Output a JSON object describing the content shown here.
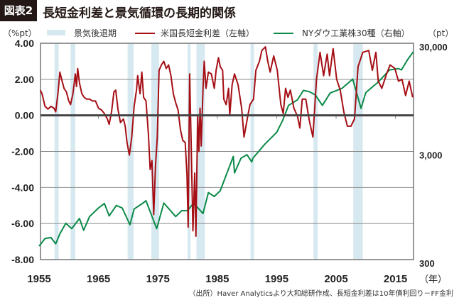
{
  "header": {
    "badge": "図表2",
    "title": "長短金利差と景気循環の長期的関係"
  },
  "legend": {
    "left_unit": "（%pt）",
    "right_unit": "（pt）",
    "recession": "景気後退期",
    "spread": "米国長短金利差（左軸）",
    "dow": "NYダウ工業株30種（右軸）"
  },
  "colors": {
    "recession": "#d7e9f0",
    "spread": "#a50f15",
    "dow": "#0b8a48",
    "zero": "#444444",
    "grid": "#888888"
  },
  "footnote": "（出所）Haver Analyticsより大和総研作成、長短金利差は10年債利回り－FF金利",
  "chart_data": {
    "type": "line",
    "title": "長短金利差と景気循環の長期的関係",
    "xlabel": "（年）",
    "xlim": [
      1955,
      2018
    ],
    "x_ticks": [
      1955,
      1965,
      1975,
      1985,
      1995,
      2005,
      2015
    ],
    "x_tick_labels": [
      "1955",
      "1965",
      "1975",
      "1985",
      "1995",
      "2005",
      "2015"
    ],
    "left_axis": {
      "ylim": [
        -8,
        4
      ],
      "ticks": [
        4,
        2,
        0,
        -2,
        -4,
        -6,
        -8
      ],
      "tick_labels": [
        "4.00",
        "2.00",
        "0.00",
        "-2.00",
        "-4.00",
        "-6.00",
        "-8.00"
      ],
      "unit": "%pt"
    },
    "right_axis": {
      "scale": "log",
      "ylim": [
        300,
        30000
      ],
      "ticks": [
        30000,
        3000,
        300
      ],
      "tick_labels": [
        "30,000",
        "3,000",
        "300"
      ],
      "unit": "pt"
    },
    "recessions": [
      [
        1957.6,
        1958.3
      ],
      [
        1960.3,
        1961.1
      ],
      [
        1969.9,
        1970.9
      ],
      [
        1973.9,
        1975.2
      ],
      [
        1980.0,
        1980.5
      ],
      [
        1981.5,
        1982.9
      ],
      [
        1990.6,
        1991.2
      ],
      [
        2001.2,
        2001.9
      ],
      [
        2007.9,
        2009.5
      ]
    ],
    "series": [
      {
        "name": "米国長短金利差（左軸）",
        "axis": "left",
        "points": [
          [
            1955.2,
            1.4
          ],
          [
            1955.5,
            1.2
          ],
          [
            1956,
            0.5
          ],
          [
            1956.5,
            0.35
          ],
          [
            1957,
            0.5
          ],
          [
            1957.5,
            0.4
          ],
          [
            1957.8,
            0.2
          ],
          [
            1958.2,
            1.3
          ],
          [
            1958.5,
            2.4
          ],
          [
            1958.8,
            2.0
          ],
          [
            1959.2,
            1.5
          ],
          [
            1959.6,
            1.3
          ],
          [
            1960,
            0.8
          ],
          [
            1960.3,
            0.6
          ],
          [
            1960.7,
            1.2
          ],
          [
            1961.1,
            2.3
          ],
          [
            1961.3,
            1.6
          ],
          [
            1961.5,
            2.6
          ],
          [
            1961.8,
            1.8
          ],
          [
            1962.2,
            1.2
          ],
          [
            1962.6,
            1.0
          ],
          [
            1963,
            0.9
          ],
          [
            1963.5,
            0.9
          ],
          [
            1964,
            0.8
          ],
          [
            1964.5,
            0.8
          ],
          [
            1965,
            0.4
          ],
          [
            1965.5,
            0.3
          ],
          [
            1966,
            0.1
          ],
          [
            1966.5,
            -0.2
          ],
          [
            1966.8,
            -0.5
          ],
          [
            1967.2,
            0.2
          ],
          [
            1967.6,
            1.3
          ],
          [
            1967.9,
            1.4
          ],
          [
            1968.3,
            0.3
          ],
          [
            1968.7,
            -0.4
          ],
          [
            1969.2,
            -0.2
          ],
          [
            1969.5,
            -0.6
          ],
          [
            1969.8,
            -1.5
          ],
          [
            1970.2,
            -2.2
          ],
          [
            1970.6,
            -1.2
          ],
          [
            1971,
            0.5
          ],
          [
            1971.4,
            1.4
          ],
          [
            1971.6,
            2.2
          ],
          [
            1972,
            1.2
          ],
          [
            1972.3,
            2.4
          ],
          [
            1972.6,
            1.0
          ],
          [
            1973,
            0.8
          ],
          [
            1973.4,
            -1.0
          ],
          [
            1973.7,
            -3.0
          ],
          [
            1974,
            -2.5
          ],
          [
            1974.3,
            -5.5
          ],
          [
            1974.6,
            -2.8
          ],
          [
            1974.9,
            -1.2
          ],
          [
            1975.2,
            2.5
          ],
          [
            1975.6,
            2.8
          ],
          [
            1976,
            3.0
          ],
          [
            1976.4,
            2.6
          ],
          [
            1976.8,
            2.8
          ],
          [
            1977.2,
            2.2
          ],
          [
            1977.6,
            1.2
          ],
          [
            1978,
            0.7
          ],
          [
            1978.4,
            0.3
          ],
          [
            1978.8,
            -0.8
          ],
          [
            1979.2,
            -1.4
          ],
          [
            1979.6,
            -1.5
          ],
          [
            1979.9,
            -3.3
          ],
          [
            1980.1,
            -6.2
          ],
          [
            1980.35,
            2.3
          ],
          [
            1980.6,
            -1.5
          ],
          [
            1980.9,
            -6.4
          ],
          [
            1981.2,
            -3.2
          ],
          [
            1981.4,
            -6.7
          ],
          [
            1981.7,
            0.0
          ],
          [
            1981.9,
            -2.0
          ],
          [
            1982.1,
            0.4
          ],
          [
            1982.3,
            -1.7
          ],
          [
            1982.6,
            1.5
          ],
          [
            1982.8,
            3.0
          ],
          [
            1983.1,
            1.5
          ],
          [
            1983.5,
            2.4
          ],
          [
            1984,
            2.3
          ],
          [
            1984.5,
            1.5
          ],
          [
            1984.8,
            2.5
          ],
          [
            1985.2,
            3.2
          ],
          [
            1985.5,
            2.7
          ],
          [
            1985.9,
            2.5
          ],
          [
            1986.1,
            0.9
          ],
          [
            1986.5,
            0.6
          ],
          [
            1986.9,
            1.5
          ],
          [
            1987.1,
            0
          ],
          [
            1987.5,
            1.7
          ],
          [
            1987.9,
            2.3
          ],
          [
            1988.5,
            1.7
          ],
          [
            1989.1,
            0.4
          ],
          [
            1989.5,
            -1.2
          ],
          [
            1990.1,
            -0.1
          ],
          [
            1990.5,
            0.6
          ],
          [
            1991.1,
            0.9
          ],
          [
            1991.5,
            2.5
          ],
          [
            1992.1,
            3.0
          ],
          [
            1992.5,
            3.6
          ],
          [
            1993.1,
            3.8
          ],
          [
            1993.5,
            3.0
          ],
          [
            1993.9,
            2.4
          ],
          [
            1994.5,
            3.3
          ],
          [
            1995.1,
            2.5
          ],
          [
            1995.7,
            0.6
          ],
          [
            1996.1,
            0.1
          ],
          [
            1996.5,
            1.5
          ],
          [
            1996.9,
            1.0
          ],
          [
            1997.3,
            1.4
          ],
          [
            1997.9,
            0.4
          ],
          [
            1998.5,
            -0.05
          ],
          [
            1998.9,
            -0.7
          ],
          [
            1999.3,
            0.9
          ],
          [
            1999.9,
            0.9
          ],
          [
            2000.5,
            -0.3
          ],
          [
            2001.1,
            -1.2
          ],
          [
            2001.7,
            2.0
          ],
          [
            2002.3,
            3.5
          ],
          [
            2002.9,
            2.2
          ],
          [
            2003.5,
            3.4
          ],
          [
            2003.9,
            2.2
          ],
          [
            2004.5,
            3.7
          ],
          [
            2005.1,
            2.0
          ],
          [
            2005.7,
            1.4
          ],
          [
            2006.3,
            0.2
          ],
          [
            2006.9,
            -0.6
          ],
          [
            2007.5,
            -0.6
          ],
          [
            2008.1,
            -0.2
          ],
          [
            2008.7,
            2.7
          ],
          [
            2009.5,
            3.5
          ],
          [
            2010.5,
            3.6
          ],
          [
            2011.1,
            2.5
          ],
          [
            2011.7,
            3.5
          ],
          [
            2012.1,
            1.9
          ],
          [
            2012.7,
            1.5
          ],
          [
            2013.5,
            2.3
          ],
          [
            2014.1,
            2.8
          ],
          [
            2014.9,
            2.6
          ],
          [
            2015.5,
            1.9
          ],
          [
            2016.1,
            2.0
          ],
          [
            2016.7,
            1.1
          ],
          [
            2017.3,
            1.9
          ],
          [
            2017.9,
            1.0
          ]
        ]
      },
      {
        "name": "NYダウ工業株30種（右軸）",
        "axis": "right",
        "points": [
          [
            1955,
            400
          ],
          [
            1956,
            470
          ],
          [
            1957,
            480
          ],
          [
            1957.8,
            420
          ],
          [
            1958.5,
            520
          ],
          [
            1959.5,
            650
          ],
          [
            1960.5,
            580
          ],
          [
            1961.8,
            720
          ],
          [
            1962.5,
            560
          ],
          [
            1963.5,
            750
          ],
          [
            1965,
            900
          ],
          [
            1966,
            990
          ],
          [
            1966.8,
            760
          ],
          [
            1968,
            950
          ],
          [
            1969,
            900
          ],
          [
            1970.3,
            630
          ],
          [
            1971,
            880
          ],
          [
            1972.5,
            1000
          ],
          [
            1973,
            1050
          ],
          [
            1974.8,
            580
          ],
          [
            1976,
            1000
          ],
          [
            1978,
            750
          ],
          [
            1979,
            850
          ],
          [
            1980,
            850
          ],
          [
            1981,
            1000
          ],
          [
            1982.6,
            800
          ],
          [
            1983.5,
            1250
          ],
          [
            1984.5,
            1150
          ],
          [
            1985.5,
            1300
          ],
          [
            1987.7,
            2700
          ],
          [
            1987.9,
            1900
          ],
          [
            1989,
            2600
          ],
          [
            1990,
            2800
          ],
          [
            1990.8,
            2400
          ],
          [
            1991,
            2600
          ],
          [
            1993,
            3500
          ],
          [
            1995,
            4500
          ],
          [
            1996,
            5800
          ],
          [
            1997,
            8000
          ],
          [
            1998.5,
            9000
          ],
          [
            1999.5,
            11000
          ],
          [
            2000.5,
            10700
          ],
          [
            2001.5,
            10000
          ],
          [
            2002.7,
            8000
          ],
          [
            2004,
            10400
          ],
          [
            2006,
            11500
          ],
          [
            2007.8,
            14000
          ],
          [
            2009.2,
            7500
          ],
          [
            2010,
            10500
          ],
          [
            2012,
            13000
          ],
          [
            2014,
            17000
          ],
          [
            2015.5,
            17500
          ],
          [
            2016,
            17000
          ],
          [
            2017,
            21000
          ],
          [
            2018,
            25000
          ]
        ]
      }
    ]
  }
}
